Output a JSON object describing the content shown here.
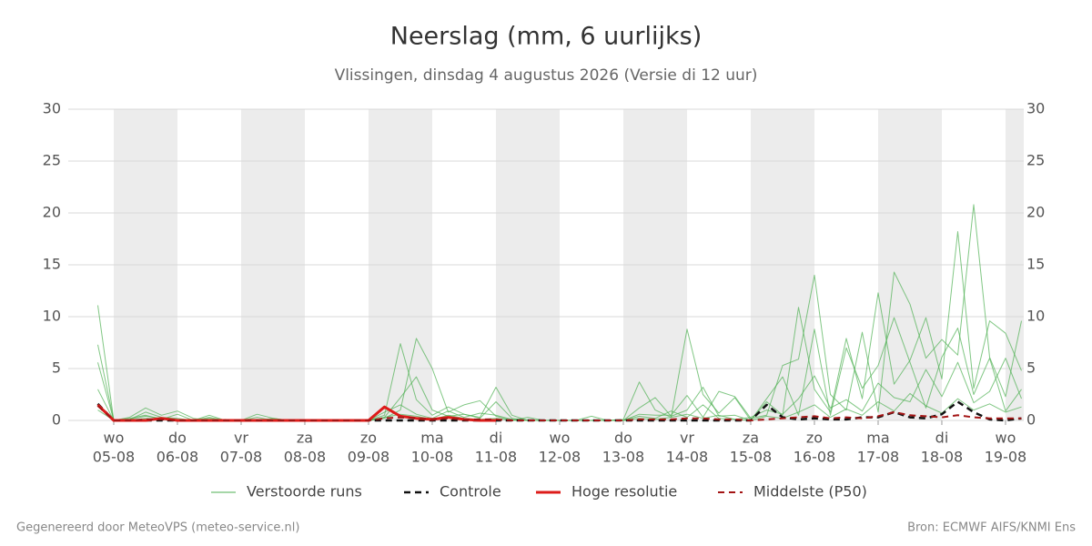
{
  "chart_data": {
    "type": "line",
    "title": "Neerslag (mm, 6 uurlijks)",
    "subtitle": "Vlissingen, dinsdag  4 augustus 2026 (Versie di 12 uur)",
    "footer_left": "Gegenereerd door MeteoVPS (meteo-service.nl)",
    "footer_right": "Bron: ECMWF AIFS/KNMI Ens",
    "ylim": [
      0,
      30
    ],
    "yticks": [
      0,
      5,
      10,
      15,
      20,
      25,
      30
    ],
    "grid": true,
    "right_axis": true,
    "xlim": [
      -0.714,
      14.286
    ],
    "xticks": [
      {
        "value": 0,
        "label": [
          "wo",
          "05-08"
        ]
      },
      {
        "value": 1,
        "label": [
          "do",
          "06-08"
        ]
      },
      {
        "value": 2,
        "label": [
          "vr",
          "07-08"
        ]
      },
      {
        "value": 3,
        "label": [
          "za",
          "08-08"
        ]
      },
      {
        "value": 4,
        "label": [
          "zo",
          "09-08"
        ]
      },
      {
        "value": 5,
        "label": [
          "ma",
          "10-08"
        ]
      },
      {
        "value": 6,
        "label": [
          "di",
          "11-08"
        ]
      },
      {
        "value": 7,
        "label": [
          "wo",
          "12-08"
        ]
      },
      {
        "value": 8,
        "label": [
          "do",
          "13-08"
        ]
      },
      {
        "value": 9,
        "label": [
          "vr",
          "14-08"
        ]
      },
      {
        "value": 10,
        "label": [
          "za",
          "15-08"
        ]
      },
      {
        "value": 11,
        "label": [
          "zo",
          "16-08"
        ]
      },
      {
        "value": 12,
        "label": [
          "ma",
          "17-08"
        ]
      },
      {
        "value": 13,
        "label": [
          "di",
          "18-08"
        ]
      },
      {
        "value": 14,
        "label": [
          "wo",
          "19-08"
        ]
      }
    ],
    "shade_color": "#ececec",
    "x": [
      -0.25,
      0,
      0.25,
      0.5,
      0.75,
      1,
      1.25,
      1.5,
      1.75,
      2,
      2.25,
      2.5,
      2.75,
      3,
      3.25,
      3.5,
      3.75,
      4,
      4.25,
      4.5,
      4.75,
      5,
      5.25,
      5.5,
      5.75,
      6,
      6.25,
      6.5,
      6.75,
      7,
      7.25,
      7.5,
      7.75,
      8,
      8.25,
      8.5,
      8.75,
      9,
      9.25,
      9.5,
      9.75,
      10,
      10.25,
      10.5,
      10.75,
      11,
      11.25,
      11.5,
      11.75,
      12,
      12.25,
      12.5,
      12.75,
      13,
      13.25,
      13.5,
      13.75,
      14,
      14.25
    ],
    "series": [
      {
        "name": "Verstoorde runs",
        "color": "#4caf50",
        "width": 1,
        "dash": false,
        "members": [
          [
            11.1,
            0,
            0.3,
            1.2,
            0.5,
            0.9,
            0.2,
            0,
            0,
            0,
            0.6,
            0.2,
            0,
            0,
            0,
            0,
            0,
            0,
            0.5,
            7.4,
            2.0,
            0.5,
            1.3,
            0.6,
            0.3,
            3.2,
            0.5,
            0,
            0,
            0,
            0,
            0,
            0,
            0.1,
            3.7,
            1.0,
            0.3,
            8.8,
            2.5,
            0.7,
            2.2,
            0,
            1.8,
            0.5,
            10.9,
            3.0,
            0.8,
            7.9,
            2.1,
            12.3,
            3.5,
            5.8,
            9.9,
            4.0,
            18.2,
            3.1,
            9.6,
            8.4,
            4.8
          ],
          [
            7.3,
            0,
            0.1,
            0.8,
            0.3,
            0.2,
            0,
            0.5,
            0,
            0,
            0.3,
            0,
            0,
            0,
            0,
            0,
            0,
            0,
            0.2,
            1.0,
            7.9,
            5.0,
            0.8,
            1.5,
            1.9,
            0.4,
            0,
            0.3,
            0,
            0,
            0,
            0,
            0,
            0,
            0.6,
            0.5,
            0.5,
            2.4,
            0.3,
            2.8,
            2.3,
            0.2,
            0.5,
            5.3,
            5.9,
            14.0,
            2.5,
            1.0,
            8.5,
            0.8,
            14.3,
            11.2,
            6.0,
            7.8,
            6.3,
            20.8,
            6.1,
            2.3,
            9.6
          ],
          [
            5.6,
            0,
            0.2,
            0.5,
            0.1,
            0.6,
            0,
            0.3,
            0,
            0,
            0,
            0.2,
            0,
            0,
            0,
            0,
            0,
            0,
            0.3,
            2.2,
            4.2,
            1.0,
            0.4,
            0.6,
            0.2,
            1.8,
            0.2,
            0,
            0,
            0,
            0,
            0.4,
            0,
            0,
            1.2,
            2.2,
            0.4,
            1.0,
            3.2,
            0.4,
            0.5,
            0,
            2.1,
            4.2,
            0.5,
            8.8,
            0.5,
            7.0,
            3.1,
            5.3,
            9.9,
            5.6,
            1.2,
            6.1,
            8.9,
            2.5,
            6.0,
            0.9,
            3.0
          ],
          [
            3.0,
            0,
            0.1,
            0.4,
            0.2,
            0.1,
            0,
            0.2,
            0,
            0,
            0.1,
            0,
            0,
            0,
            0,
            0,
            0,
            0,
            0.8,
            1.5,
            0.6,
            0.2,
            0.9,
            0.3,
            0.7,
            0.5,
            0.1,
            0,
            0,
            0,
            0,
            0,
            0,
            0,
            0.4,
            0.2,
            0.9,
            0.3,
            1.5,
            0.2,
            0.1,
            0.3,
            1.0,
            0.6,
            2.1,
            4.3,
            1.2,
            2.0,
            0.9,
            3.6,
            2.2,
            1.8,
            4.9,
            2.3,
            5.6,
            1.7,
            2.8,
            6.0,
            2.1
          ],
          [
            1.0,
            0,
            0,
            0.2,
            0.1,
            0,
            0,
            0,
            0.1,
            0,
            0,
            0,
            0,
            0,
            0,
            0,
            0,
            0,
            0.3,
            0.6,
            0.4,
            0.1,
            0.5,
            0.2,
            0.1,
            0.2,
            0,
            0,
            0,
            0,
            0,
            0,
            0,
            0,
            0.2,
            0.1,
            0.3,
            0.6,
            0.2,
            0.5,
            0.1,
            0,
            0.4,
            0.2,
            0.8,
            1.5,
            0.3,
            1.1,
            0.5,
            1.8,
            0.9,
            2.6,
            1.4,
            0.7,
            2.1,
            1.0,
            1.6,
            0.8,
            1.3
          ]
        ]
      },
      {
        "name": "Controle",
        "color": "#111111",
        "width": 2.5,
        "dash": true,
        "values": [
          1.6,
          0,
          0,
          0,
          0,
          0,
          0,
          0,
          0,
          0,
          0,
          0,
          0,
          0,
          0,
          0,
          0,
          0,
          0,
          0,
          0,
          0,
          0,
          0,
          0,
          0,
          0,
          0,
          0,
          0,
          0,
          0,
          0,
          0,
          0,
          0,
          0,
          0,
          0,
          0,
          0,
          0,
          1.5,
          0.3,
          0.1,
          0.2,
          0.1,
          0.1,
          0.3,
          0.3,
          0.8,
          0.3,
          0.2,
          0.6,
          1.8,
          0.8,
          0.1,
          0,
          0.2
        ]
      },
      {
        "name": "Hoge resolutie",
        "color": "#dd1c1a",
        "width": 3,
        "dash": false,
        "values": [
          1.5,
          0,
          0,
          0,
          0.2,
          0,
          0,
          0,
          0,
          0,
          0,
          0,
          0,
          0,
          0,
          0,
          0,
          0,
          1.3,
          0.4,
          0.2,
          0.1,
          0.3,
          0.1,
          0,
          0,
          null,
          null,
          null,
          null,
          null,
          null,
          null,
          null,
          null,
          null,
          null,
          null,
          null,
          null,
          null,
          null,
          null,
          null,
          null,
          null,
          null,
          null,
          null,
          null,
          null,
          null,
          null,
          null,
          null,
          null,
          null,
          null,
          null
        ]
      },
      {
        "name": "Middelste (P50)",
        "color": "#a31515",
        "width": 2,
        "dash": true,
        "values": [
          1.4,
          0,
          0,
          0.1,
          0.1,
          0,
          0,
          0,
          0,
          0,
          0,
          0,
          0,
          0,
          0,
          0,
          0,
          0,
          0.2,
          0.3,
          0.2,
          0.1,
          0.2,
          0.1,
          0.1,
          0.1,
          0,
          0,
          0,
          0,
          0,
          0,
          0,
          0,
          0.1,
          0.1,
          0.1,
          0.2,
          0.2,
          0.1,
          0.1,
          0,
          0.1,
          0.2,
          0.3,
          0.4,
          0.2,
          0.3,
          0.2,
          0.4,
          0.8,
          0.5,
          0.4,
          0.3,
          0.5,
          0.3,
          0.2,
          0.2,
          0.2
        ]
      }
    ]
  }
}
